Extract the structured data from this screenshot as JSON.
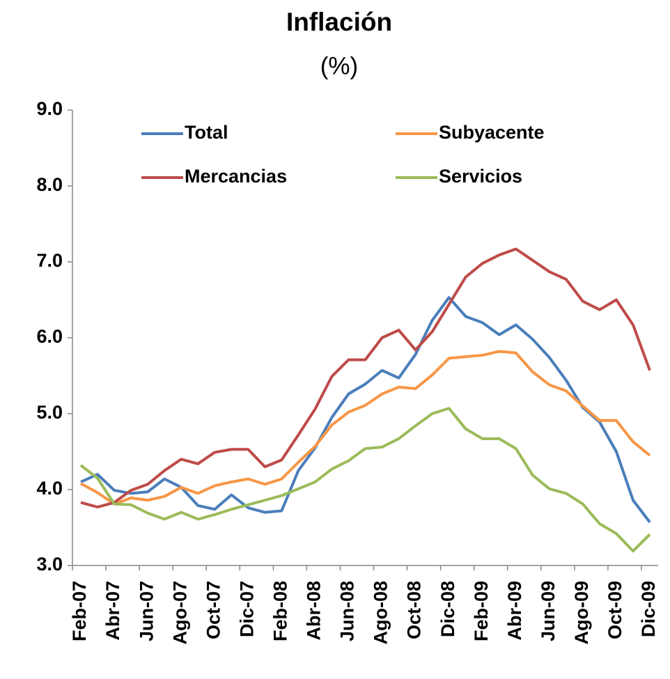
{
  "chart_data": {
    "type": "line",
    "title": "Inflación",
    "subtitle": "(%)",
    "categories": [
      "Feb-07",
      null,
      "Abr-07",
      null,
      "Jun-07",
      null,
      "Ago-07",
      null,
      "Oct-07",
      null,
      "Dic-07",
      null,
      "Feb-08",
      null,
      "Abr-08",
      null,
      "Jun-08",
      null,
      "Ago-08",
      null,
      "Oct-08",
      null,
      "Dic-08",
      null,
      "Feb-09",
      null,
      "Abr-09",
      null,
      "Jun-09",
      null,
      "Ago-09",
      null,
      "Oct-09",
      null,
      "Dic-09"
    ],
    "series": [
      {
        "name": "Total",
        "color": "#4a7ebb",
        "values": [
          4.1,
          4.2,
          3.99,
          3.95,
          3.97,
          4.14,
          4.03,
          3.79,
          3.74,
          3.93,
          3.76,
          3.7,
          3.72,
          4.25,
          4.55,
          4.95,
          5.26,
          5.39,
          5.57,
          5.47,
          5.78,
          6.23,
          6.53,
          6.28,
          6.2,
          6.04,
          6.17,
          5.98,
          5.74,
          5.44,
          5.08,
          4.89,
          4.5,
          3.86,
          3.57
        ]
      },
      {
        "name": "Subyacente",
        "color": "#f79646",
        "values": [
          4.08,
          3.96,
          3.81,
          3.89,
          3.86,
          3.91,
          4.03,
          3.95,
          4.05,
          4.1,
          4.14,
          4.07,
          4.14,
          4.36,
          4.57,
          4.85,
          5.02,
          5.11,
          5.26,
          5.35,
          5.33,
          5.51,
          5.73,
          5.75,
          5.77,
          5.82,
          5.8,
          5.55,
          5.38,
          5.3,
          5.1,
          4.91,
          4.91,
          4.63,
          4.45
        ]
      },
      {
        "name": "Mercancias",
        "color": "#be4b48",
        "values": [
          3.83,
          3.77,
          3.83,
          3.99,
          4.07,
          4.25,
          4.4,
          4.34,
          4.49,
          4.53,
          4.53,
          4.3,
          4.39,
          4.72,
          5.06,
          5.49,
          5.71,
          5.71,
          6.0,
          6.1,
          5.84,
          6.08,
          6.44,
          6.8,
          6.98,
          7.09,
          7.17,
          7.02,
          6.87,
          6.77,
          6.48,
          6.37,
          6.5,
          6.17,
          5.57
        ]
      },
      {
        "name": "Servicios",
        "color": "#9bbb59",
        "values": [
          4.32,
          4.15,
          3.81,
          3.8,
          3.69,
          3.61,
          3.7,
          3.61,
          3.67,
          3.74,
          3.8,
          3.86,
          3.92,
          4.01,
          4.1,
          4.27,
          4.38,
          4.54,
          4.56,
          4.67,
          4.84,
          5.0,
          5.07,
          4.8,
          4.67,
          4.67,
          4.54,
          4.19,
          4.01,
          3.95,
          3.81,
          3.55,
          3.42,
          3.19,
          3.41
        ]
      }
    ],
    "ylim": [
      3,
      9
    ],
    "yticks": [
      {
        "value": 3,
        "label": "3.0"
      },
      {
        "value": 4,
        "label": "4.0"
      },
      {
        "value": 5,
        "label": "5.0"
      },
      {
        "value": 6,
        "label": "6.0"
      },
      {
        "value": 7,
        "label": "7.0"
      },
      {
        "value": 8,
        "label": "8.0"
      },
      {
        "value": 9,
        "label": "9.0"
      }
    ],
    "grid": false,
    "legend": "top"
  }
}
